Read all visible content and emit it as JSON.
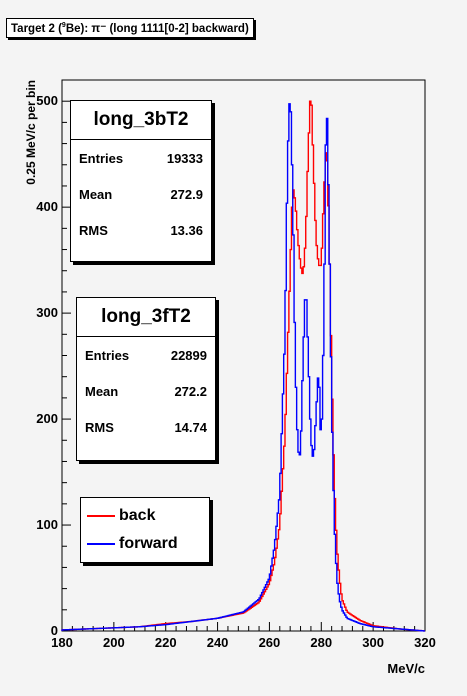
{
  "title": {
    "prefix": "Target 2 (",
    "isotope_mass": "9",
    "suffix": "Be): π⁻ (long 1111[0-2] backward)"
  },
  "chart_data": {
    "type": "histogram",
    "xlabel": "MeV/c",
    "ylabel": "0.25 MeV/c per bin",
    "xlim": [
      180,
      320
    ],
    "ylim": [
      0,
      520
    ],
    "xticks": [
      180,
      200,
      220,
      240,
      260,
      280,
      300,
      320
    ],
    "yticks": [
      0,
      100,
      200,
      300,
      400,
      500
    ],
    "grid": false,
    "legend_position": "bottom-left",
    "series": [
      {
        "name": "back",
        "color": "#ff0000",
        "points": [
          [
            180,
            1
          ],
          [
            190,
            2
          ],
          [
            200,
            3
          ],
          [
            210,
            4
          ],
          [
            220,
            7
          ],
          [
            230,
            9
          ],
          [
            240,
            12
          ],
          [
            250,
            17
          ],
          [
            256,
            27
          ],
          [
            260,
            45
          ],
          [
            262,
            65
          ],
          [
            264,
            100
          ],
          [
            266,
            185
          ],
          [
            268,
            340
          ],
          [
            269,
            420
          ],
          [
            270,
            405
          ],
          [
            271,
            370
          ],
          [
            272,
            345
          ],
          [
            273,
            335
          ],
          [
            274,
            370
          ],
          [
            275,
            455
          ],
          [
            276,
            515
          ],
          [
            277,
            440
          ],
          [
            278,
            370
          ],
          [
            279,
            345
          ],
          [
            280,
            345
          ],
          [
            281,
            410
          ],
          [
            282,
            465
          ],
          [
            283,
            380
          ],
          [
            284,
            245
          ],
          [
            285,
            140
          ],
          [
            286,
            80
          ],
          [
            287,
            50
          ],
          [
            288,
            30
          ],
          [
            290,
            18
          ],
          [
            295,
            10
          ],
          [
            300,
            5
          ],
          [
            310,
            2
          ],
          [
            320,
            0
          ]
        ]
      },
      {
        "name": "forward",
        "color": "#0000ff",
        "points": [
          [
            180,
            1
          ],
          [
            190,
            2
          ],
          [
            200,
            3
          ],
          [
            210,
            4
          ],
          [
            220,
            6
          ],
          [
            230,
            9
          ],
          [
            240,
            12
          ],
          [
            250,
            18
          ],
          [
            256,
            30
          ],
          [
            260,
            50
          ],
          [
            262,
            80
          ],
          [
            264,
            130
          ],
          [
            266,
            280
          ],
          [
            267,
            445
          ],
          [
            268,
            515
          ],
          [
            269,
            415
          ],
          [
            270,
            250
          ],
          [
            271,
            170
          ],
          [
            272,
            165
          ],
          [
            273,
            260
          ],
          [
            274,
            330
          ],
          [
            275,
            260
          ],
          [
            276,
            180
          ],
          [
            277,
            160
          ],
          [
            278,
            205
          ],
          [
            279,
            250
          ],
          [
            280,
            170
          ],
          [
            281,
            290
          ],
          [
            282,
            515
          ],
          [
            283,
            390
          ],
          [
            284,
            215
          ],
          [
            285,
            105
          ],
          [
            286,
            50
          ],
          [
            287,
            30
          ],
          [
            288,
            20
          ],
          [
            290,
            12
          ],
          [
            295,
            7
          ],
          [
            300,
            4
          ],
          [
            310,
            2
          ],
          [
            320,
            0
          ]
        ]
      }
    ]
  },
  "stats": [
    {
      "name": "long_3bT2",
      "rows": [
        [
          "Entries",
          "19333"
        ],
        [
          "Mean",
          "272.9"
        ],
        [
          "RMS",
          "13.36"
        ]
      ]
    },
    {
      "name": "long_3fT2",
      "rows": [
        [
          "Entries",
          "22899"
        ],
        [
          "Mean",
          "272.2"
        ],
        [
          "RMS",
          "14.74"
        ]
      ]
    }
  ],
  "legend": [
    {
      "label": "back",
      "color": "#ff0000"
    },
    {
      "label": "forward",
      "color": "#0000ff"
    }
  ]
}
